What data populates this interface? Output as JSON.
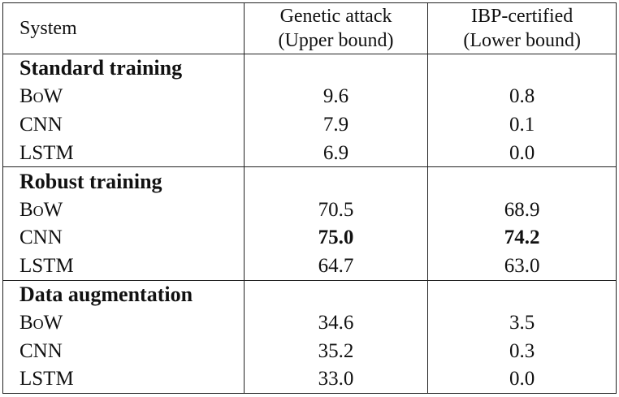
{
  "table": {
    "header": [
      "System",
      "Genetic attack",
      "(Upper bound)",
      "IBP-certified",
      "(Lower bound)"
    ],
    "sections": [
      {
        "title": "Standard training",
        "rows": [
          {
            "system": "BoW",
            "values": [
              "9.6",
              "0.8"
            ]
          },
          {
            "system": "CNN",
            "values": [
              "7.9",
              "0.1"
            ]
          },
          {
            "system": "LSTM",
            "values": [
              "6.9",
              "0.0"
            ]
          }
        ]
      },
      {
        "title": "Robust training",
        "rows": [
          {
            "system": "BoW",
            "values": [
              "70.5",
              "68.9"
            ]
          },
          {
            "system": "CNN",
            "values": [
              "75.0",
              "74.2"
            ],
            "bold": true
          },
          {
            "system": "LSTM",
            "values": [
              "64.7",
              "63.0"
            ]
          }
        ]
      },
      {
        "title": "Data augmentation",
        "rows": [
          {
            "system": "BoW",
            "values": [
              "34.6",
              "3.5"
            ]
          },
          {
            "system": "CNN",
            "values": [
              "35.2",
              "0.3"
            ]
          },
          {
            "system": "LSTM",
            "values": [
              "33.0",
              "0.0"
            ]
          }
        ]
      }
    ]
  }
}
